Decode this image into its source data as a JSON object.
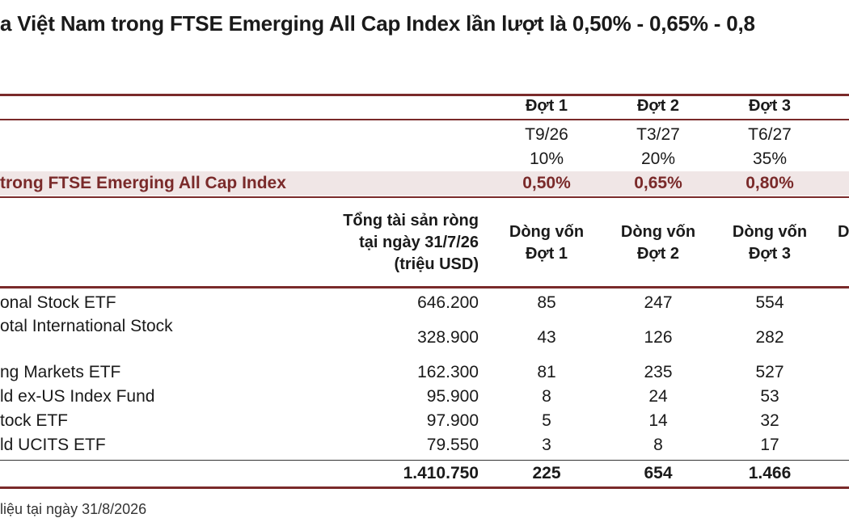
{
  "title": "a Việt Nam trong FTSE Emerging All Cap Index lần lượt là 0,50% - 0,65% - 0,8",
  "phase_table": {
    "headers": [
      "Đợt 1",
      "Đợt 2",
      "Đợt 3"
    ],
    "dates": [
      "T9/26",
      "T3/27",
      "T6/27"
    ],
    "percents": [
      "10%",
      "20%",
      "35%"
    ],
    "weight_label": "trong FTSE Emerging All Cap Index",
    "weights": [
      "0,50%",
      "0,65%",
      "0,80%"
    ]
  },
  "flow_table": {
    "col_assets": "Tổng tài sản ròng\ntại ngày 31/7/26\n(triệu USD)",
    "col_flow1": "Dòng vốn\nĐợt 1",
    "col_flow2": "Dòng vốn\nĐợt 2",
    "col_flow3": "Dòng vốn\nĐợt 3",
    "col_partial": "D",
    "rows": [
      {
        "name": "onal Stock ETF",
        "assets": "646.200",
        "f1": "85",
        "f2": "247",
        "f3": "554"
      },
      {
        "name": "otal International Stock",
        "assets": "328.900",
        "f1": "43",
        "f2": "126",
        "f3": "282"
      },
      {
        "name": "ng Markets ETF",
        "assets": "162.300",
        "f1": "81",
        "f2": "235",
        "f3": "527"
      },
      {
        "name": "ld ex-US Index Fund",
        "assets": "95.900",
        "f1": "8",
        "f2": "24",
        "f3": "53"
      },
      {
        "name": "tock ETF",
        "assets": "97.900",
        "f1": "5",
        "f2": "14",
        "f3": "32"
      },
      {
        "name": "ld UCITS ETF",
        "assets": "79.550",
        "f1": "3",
        "f2": "8",
        "f3": "17"
      }
    ],
    "total": {
      "assets": "1.410.750",
      "f1": "225",
      "f2": "654",
      "f3": "1.466"
    }
  },
  "footnote": "liệu tại ngày 31/8/2026"
}
